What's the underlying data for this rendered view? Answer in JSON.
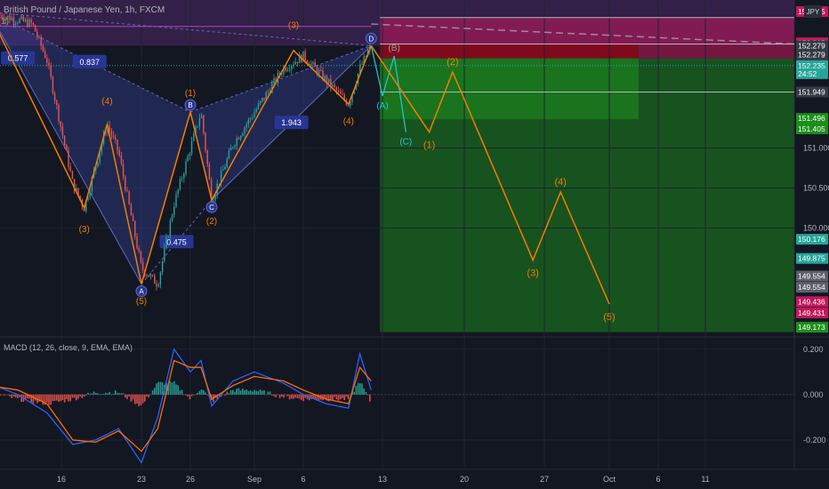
{
  "header": {
    "symbol_title": "British Pound / Japanese Yen, 1h, FXCM",
    "currency_badge": "JPY",
    "countdown": "24:52"
  },
  "indicator": {
    "title": "MACD (12, 26, close, 9, EMA, EMA)"
  },
  "colors": {
    "background": "#131722",
    "up_candle": "#26a69a",
    "down_candle": "#ef5350",
    "wave_orange": "#f57c00",
    "wave_teal": "#26c6da",
    "harmonic_fill": "#3949ab",
    "target_zone": "#1b8f1b",
    "stop_zone": "#c2185b",
    "macd_line": "#2962ff",
    "signal_line": "#ff6d00"
  },
  "chart_data": [
    {
      "type": "line",
      "title": "British Pound / Japanese Yen, 1h, FXCM",
      "xlabel": "",
      "ylabel": "",
      "x_ticks": [
        "16",
        "23",
        "26",
        "Sep",
        "6",
        "13",
        "20",
        "27",
        "Oct",
        "6",
        "11"
      ],
      "y_ticks": [
        151.0,
        150.5,
        150.0
      ],
      "ylim": [
        148.65,
        152.85
      ],
      "grid": true,
      "price_path": [
        {
          "date": "2023-08-11",
          "price": 152.7
        },
        {
          "date": "2023-08-14",
          "price": 152.55
        },
        {
          "date": "2023-08-15",
          "price": 152.1
        },
        {
          "date": "2023-08-17",
          "price": 150.55
        },
        {
          "date": "2023-08-18",
          "price": 150.25
        },
        {
          "date": "2023-08-20",
          "price": 151.3
        },
        {
          "date": "2023-08-21",
          "price": 150.95
        },
        {
          "date": "2023-08-23",
          "price": 149.5
        },
        {
          "date": "2023-08-24",
          "price": 149.3
        },
        {
          "date": "2023-08-25",
          "price": 150.3
        },
        {
          "date": "2023-08-27",
          "price": 151.45
        },
        {
          "date": "2023-08-28",
          "price": 150.35
        },
        {
          "date": "2023-08-30",
          "price": 151.05
        },
        {
          "date": "2023-09-01",
          "price": 151.45
        },
        {
          "date": "2023-09-04",
          "price": 152.0
        },
        {
          "date": "2023-09-06",
          "price": 152.15
        },
        {
          "date": "2023-09-08",
          "price": 151.85
        },
        {
          "date": "2023-09-10",
          "price": 151.55
        },
        {
          "date": "2023-09-11",
          "price": 152.0
        },
        {
          "date": "2023-09-12",
          "price": 152.28
        }
      ],
      "price_labels": [
        {
          "label": "152.705",
          "value": 152.705,
          "color": "#c2185b"
        },
        {
          "label": "152.315",
          "value": 152.315,
          "color": "#c2185b"
        },
        {
          "label": "152.279",
          "value": 152.279,
          "color": "#363a45"
        },
        {
          "label": "152.279",
          "value": 152.165,
          "color": "#363a45"
        },
        {
          "label": "152.235",
          "value": 152.03,
          "color": "#26a69a"
        },
        {
          "label": "24:52",
          "value": 151.93,
          "color": "#26a69a"
        },
        {
          "label": "151.949",
          "value": 151.7,
          "color": "#363a45"
        },
        {
          "label": "151.496",
          "value": 151.37,
          "color": "#1b8f1b"
        },
        {
          "label": "151.405",
          "value": 151.24,
          "color": "#1b8f1b"
        },
        {
          "label": "150.176",
          "value": 149.86,
          "color": "#26a69a"
        },
        {
          "label": "149.875",
          "value": 149.62,
          "color": "#26a69a"
        },
        {
          "label": "149.554",
          "value": 149.4,
          "color": "#5d606b"
        },
        {
          "label": "149.554",
          "value": 149.26,
          "color": "#5d606b"
        },
        {
          "label": "149.436",
          "value": 149.08,
          "color": "#c2185b"
        },
        {
          "label": "149.431",
          "value": 148.94,
          "color": "#c2185b"
        },
        {
          "label": "149.173",
          "value": 148.76,
          "color": "#1b8f1b"
        }
      ],
      "ratio_labels": [
        "0.837",
        "0.577",
        "1.943",
        "0.475"
      ],
      "harmonic_points": [
        {
          "label": "B",
          "date": "2023-08-26",
          "price": 151.45
        },
        {
          "label": "C",
          "date": "2023-08-28",
          "price": 150.35
        },
        {
          "label": "A",
          "date": "2023-08-23",
          "price": 149.3
        },
        {
          "label": "D",
          "date": "2023-09-12",
          "price": 152.28
        }
      ],
      "past_wave_labels": [
        {
          "label": "(1)",
          "date": "2023-08-12",
          "price": 152.55
        },
        {
          "label": "(3)",
          "date": "2023-08-18",
          "price": 149.95
        },
        {
          "label": "(4)",
          "date": "2023-08-20",
          "price": 151.55
        },
        {
          "label": "(5)",
          "date": "2023-08-23",
          "price": 149.05
        },
        {
          "label": "(1)",
          "date": "2023-08-26",
          "price": 151.65
        },
        {
          "label": "(2)",
          "date": "2023-08-28",
          "price": 150.05
        },
        {
          "label": "(3)",
          "date": "2023-09-05",
          "price": 152.5
        },
        {
          "label": "(4)",
          "date": "2023-09-10",
          "price": 151.3
        }
      ],
      "abc_path": [
        {
          "label": "",
          "date": "2023-09-12",
          "price": 152.28
        },
        {
          "label": "(A)",
          "date": "2023-09-13",
          "price": 151.65
        },
        {
          "label": "(B)",
          "date": "2023-09-14",
          "price": 152.15
        },
        {
          "label": "(C)",
          "date": "2023-09-15",
          "price": 151.2
        }
      ],
      "projection_path": [
        {
          "label": "",
          "date": "2023-09-12",
          "price": 152.28
        },
        {
          "label": "(1)",
          "date": "2023-09-17",
          "price": 151.2
        },
        {
          "label": "(2)",
          "date": "2023-09-19",
          "price": 151.95
        },
        {
          "label": "(3)",
          "date": "2023-09-26",
          "price": 149.6
        },
        {
          "label": "(4)",
          "date": "2023-09-28",
          "price": 150.45
        },
        {
          "label": "(5)",
          "date": "2023-10-01",
          "price": 149.05
        }
      ],
      "top_wave_label": "D"
    },
    {
      "type": "line",
      "title": "MACD (12, 26, close, 9, EMA, EMA)",
      "y_ticks": [
        0.2,
        0.0,
        -0.2
      ],
      "ylim": [
        -0.33,
        0.25
      ],
      "zero_line": 0.0,
      "series": [
        {
          "name": "MACD",
          "points": [
            {
              "date": "2023-08-11",
              "value": 0.05
            },
            {
              "date": "2023-08-13",
              "value": 0.0
            },
            {
              "date": "2023-08-15",
              "value": -0.08
            },
            {
              "date": "2023-08-17",
              "value": -0.22
            },
            {
              "date": "2023-08-19",
              "value": -0.2
            },
            {
              "date": "2023-08-21",
              "value": -0.15
            },
            {
              "date": "2023-08-23",
              "value": -0.3
            },
            {
              "date": "2023-08-24",
              "value": -0.1
            },
            {
              "date": "2023-08-25",
              "value": 0.2
            },
            {
              "date": "2023-08-26",
              "value": 0.1
            },
            {
              "date": "2023-08-27",
              "value": 0.15
            },
            {
              "date": "2023-08-28",
              "value": -0.05
            },
            {
              "date": "2023-08-30",
              "value": 0.06
            },
            {
              "date": "2023-09-01",
              "value": 0.1
            },
            {
              "date": "2023-09-04",
              "value": 0.05
            },
            {
              "date": "2023-09-06",
              "value": 0.0
            },
            {
              "date": "2023-09-08",
              "value": -0.04
            },
            {
              "date": "2023-09-10",
              "value": -0.06
            },
            {
              "date": "2023-09-11",
              "value": 0.18
            },
            {
              "date": "2023-09-12",
              "value": 0.02
            }
          ]
        },
        {
          "name": "Signal",
          "points": [
            {
              "date": "2023-08-11",
              "value": 0.04
            },
            {
              "date": "2023-08-13",
              "value": 0.02
            },
            {
              "date": "2023-08-15",
              "value": -0.04
            },
            {
              "date": "2023-08-17",
              "value": -0.2
            },
            {
              "date": "2023-08-19",
              "value": -0.21
            },
            {
              "date": "2023-08-21",
              "value": -0.16
            },
            {
              "date": "2023-08-23",
              "value": -0.25
            },
            {
              "date": "2023-08-24",
              "value": -0.15
            },
            {
              "date": "2023-08-25",
              "value": 0.15
            },
            {
              "date": "2023-08-26",
              "value": 0.12
            },
            {
              "date": "2023-08-27",
              "value": 0.12
            },
            {
              "date": "2023-08-28",
              "value": -0.02
            },
            {
              "date": "2023-08-30",
              "value": 0.04
            },
            {
              "date": "2023-09-01",
              "value": 0.08
            },
            {
              "date": "2023-09-04",
              "value": 0.06
            },
            {
              "date": "2023-09-06",
              "value": 0.02
            },
            {
              "date": "2023-09-08",
              "value": -0.02
            },
            {
              "date": "2023-09-10",
              "value": -0.04
            },
            {
              "date": "2023-09-11",
              "value": 0.12
            },
            {
              "date": "2023-09-12",
              "value": 0.06
            }
          ]
        }
      ]
    }
  ]
}
